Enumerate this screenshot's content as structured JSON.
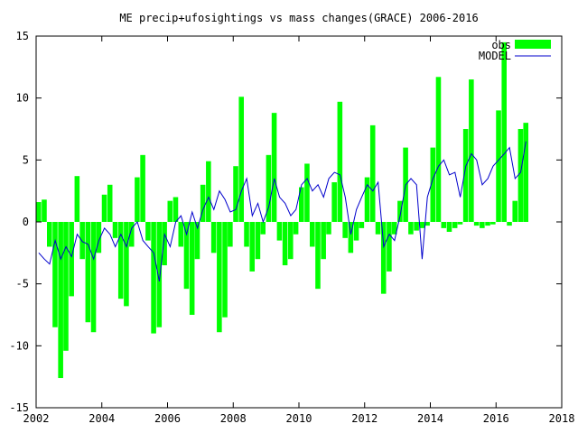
{
  "chart_data": {
    "type": "bar",
    "title": "ME precip+ufosightings vs mass changes(GRACE) 2006-2016",
    "xlabel": "",
    "ylabel": "",
    "xlim": [
      2002,
      2018
    ],
    "ylim": [
      -15,
      15
    ],
    "x_ticks": [
      "2002",
      "2004",
      "2006",
      "2008",
      "2010",
      "2012",
      "2014",
      "2016",
      "2018"
    ],
    "y_ticks": [
      "15",
      "10",
      "5",
      "0",
      "-5",
      "-10",
      "-15"
    ],
    "legend_position": "top-right",
    "colors": {
      "obs": "#00ff00",
      "model": "#0000cc",
      "axis": "#000000"
    },
    "series": [
      {
        "name": "obs",
        "kind": "bar",
        "x": [
          2002.0,
          2002.17,
          2002.33,
          2002.5,
          2002.67,
          2002.83,
          2003.0,
          2003.17,
          2003.33,
          2003.5,
          2003.67,
          2003.83,
          2004.0,
          2004.17,
          2004.33,
          2004.5,
          2004.67,
          2004.83,
          2005.0,
          2005.17,
          2005.33,
          2005.5,
          2005.67,
          2005.83,
          2006.0,
          2006.17,
          2006.33,
          2006.5,
          2006.67,
          2006.83,
          2007.0,
          2007.17,
          2007.33,
          2007.5,
          2007.67,
          2007.83,
          2008.0,
          2008.17,
          2008.33,
          2008.5,
          2008.67,
          2008.83,
          2009.0,
          2009.17,
          2009.33,
          2009.5,
          2009.67,
          2009.83,
          2010.0,
          2010.17,
          2010.33,
          2010.5,
          2010.67,
          2010.83,
          2011.0,
          2011.17,
          2011.33,
          2011.5,
          2011.67,
          2011.83,
          2012.0,
          2012.17,
          2012.33,
          2012.5,
          2012.67,
          2012.83,
          2013.0,
          2013.17,
          2013.33,
          2013.5,
          2013.67,
          2013.83,
          2014.0,
          2014.17,
          2014.33,
          2014.5,
          2014.67,
          2014.83,
          2015.0,
          2015.17,
          2015.33,
          2015.5,
          2015.67,
          2015.83,
          2016.0,
          2016.17,
          2016.33,
          2016.5,
          2016.67,
          2016.83
        ],
        "values": [
          1.6,
          1.8,
          -2.0,
          -8.5,
          -12.6,
          -10.4,
          -6.0,
          3.7,
          -3.0,
          -8.1,
          -8.9,
          -2.5,
          2.2,
          3.0,
          -1.3,
          -6.2,
          -6.8,
          -2.0,
          3.6,
          5.4,
          -1.5,
          -9.0,
          -8.5,
          -3.5,
          1.7,
          2.0,
          -2.0,
          -5.4,
          -7.5,
          -3.0,
          3.0,
          4.9,
          -2.5,
          -8.9,
          -7.7,
          -2.0,
          4.5,
          10.1,
          -2.0,
          -4.0,
          -3.0,
          -1.0,
          5.4,
          8.8,
          -1.5,
          -3.5,
          -3.0,
          -1.0,
          2.8,
          4.7,
          -2.0,
          -5.4,
          -3.0,
          -1.0,
          3.2,
          9.7,
          -1.3,
          -2.5,
          -1.5,
          -0.5,
          3.6,
          7.8,
          -1.0,
          -5.8,
          -4.0,
          -1.0,
          1.7,
          6.0,
          -1.0,
          -0.7,
          -0.5,
          -0.3,
          6.0,
          11.7,
          -0.5,
          -0.8,
          -0.5,
          -0.2,
          7.5,
          11.5,
          -0.3,
          -0.5,
          -0.3,
          -0.2,
          9.0,
          14.5,
          -0.3,
          1.7,
          7.5,
          8.0
        ]
      },
      {
        "name": "MODEL",
        "kind": "line",
        "x": [
          2002.0,
          2002.17,
          2002.33,
          2002.5,
          2002.67,
          2002.83,
          2003.0,
          2003.17,
          2003.33,
          2003.5,
          2003.67,
          2003.83,
          2004.0,
          2004.17,
          2004.33,
          2004.5,
          2004.67,
          2004.83,
          2005.0,
          2005.17,
          2005.33,
          2005.5,
          2005.67,
          2005.83,
          2006.0,
          2006.17,
          2006.33,
          2006.5,
          2006.67,
          2006.83,
          2007.0,
          2007.17,
          2007.33,
          2007.5,
          2007.67,
          2007.83,
          2008.0,
          2008.17,
          2008.33,
          2008.5,
          2008.67,
          2008.83,
          2009.0,
          2009.17,
          2009.33,
          2009.5,
          2009.67,
          2009.83,
          2010.0,
          2010.17,
          2010.33,
          2010.5,
          2010.67,
          2010.83,
          2011.0,
          2011.17,
          2011.33,
          2011.5,
          2011.67,
          2011.83,
          2012.0,
          2012.17,
          2012.33,
          2012.5,
          2012.67,
          2012.83,
          2013.0,
          2013.17,
          2013.33,
          2013.5,
          2013.67,
          2013.83,
          2014.0,
          2014.17,
          2014.33,
          2014.5,
          2014.67,
          2014.83,
          2015.0,
          2015.17,
          2015.33,
          2015.5,
          2015.67,
          2015.83,
          2016.0,
          2016.17,
          2016.33,
          2016.5,
          2016.67,
          2016.83
        ],
        "values": [
          -2.5,
          -3.0,
          -3.4,
          -1.5,
          -3.0,
          -2.0,
          -2.8,
          -1.0,
          -1.6,
          -1.8,
          -3.0,
          -1.5,
          -0.5,
          -1.0,
          -2.0,
          -1.0,
          -2.0,
          -0.5,
          0.0,
          -1.5,
          -2.0,
          -2.5,
          -4.8,
          -1.0,
          -2.0,
          0.0,
          0.5,
          -1.0,
          0.8,
          -0.5,
          1.0,
          2.0,
          1.0,
          2.5,
          1.8,
          0.8,
          1.0,
          2.5,
          3.5,
          0.5,
          1.5,
          0.0,
          1.2,
          3.5,
          2.0,
          1.5,
          0.5,
          1.0,
          3.0,
          3.5,
          2.5,
          3.0,
          2.0,
          3.5,
          4.0,
          3.8,
          2.0,
          -1.0,
          1.0,
          2.0,
          3.0,
          2.5,
          3.2,
          -2.0,
          -1.0,
          -1.5,
          0.5,
          3.0,
          3.5,
          3.0,
          -3.0,
          2.0,
          3.5,
          4.5,
          5.0,
          3.8,
          4.0,
          2.0,
          4.5,
          5.5,
          5.0,
          3.0,
          3.5,
          4.5,
          5.0,
          5.5,
          6.0,
          3.5,
          4.0,
          6.5
        ]
      }
    ]
  }
}
